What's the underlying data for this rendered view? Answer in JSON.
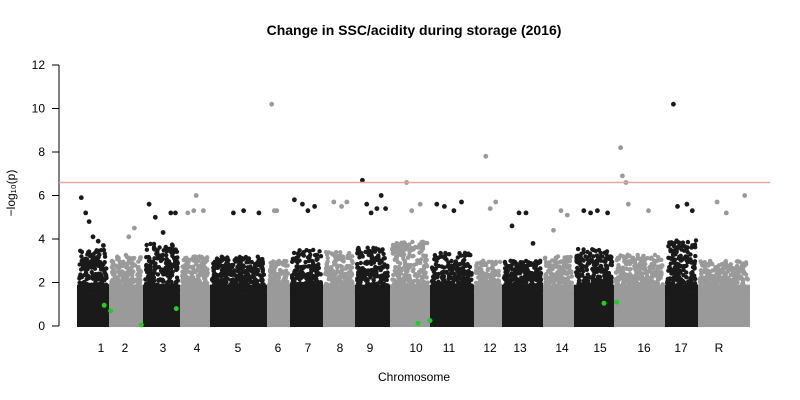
{
  "chart_data": {
    "type": "scatter",
    "subtype": "manhattan",
    "title": "Change in SSC/acidity during storage (2016)",
    "xlabel": "Chromosome",
    "ylabel": "−log₁₀(p)",
    "ylim": [
      0,
      12
    ],
    "yticks": [
      0,
      2,
      4,
      6,
      8,
      10,
      12
    ],
    "threshold": 6.6,
    "grid": false,
    "legend": "none",
    "chromosomes": [
      {
        "label": "1",
        "shade": "dark",
        "max_bulk": 3.5,
        "outliers": [
          [
            0.05,
            5.9
          ],
          [
            0.22,
            5.2
          ],
          [
            0.35,
            4.8
          ],
          [
            0.5,
            4.1
          ],
          [
            0.7,
            3.9
          ],
          [
            0.9,
            3.7
          ]
        ]
      },
      {
        "label": "2",
        "shade": "light",
        "max_bulk": 3.3,
        "outliers": [
          [
            0.6,
            4.1
          ],
          [
            0.8,
            4.5
          ]
        ]
      },
      {
        "label": "3",
        "shade": "dark",
        "max_bulk": 3.8,
        "outliers": [
          [
            0.1,
            5.6
          ],
          [
            0.3,
            5.0
          ],
          [
            0.55,
            4.3
          ],
          [
            0.8,
            5.2
          ],
          [
            0.95,
            5.2
          ]
        ]
      },
      {
        "label": "4",
        "shade": "light",
        "max_bulk": 3.2,
        "outliers": [
          [
            0.2,
            5.2
          ],
          [
            0.45,
            5.3
          ],
          [
            0.55,
            6.0
          ],
          [
            0.85,
            5.3
          ]
        ]
      },
      {
        "label": "5",
        "shade": "dark",
        "max_bulk": 3.2,
        "outliers": [
          [
            0.4,
            5.2
          ],
          [
            0.6,
            5.3
          ],
          [
            0.9,
            5.2
          ]
        ]
      },
      {
        "label": "6",
        "shade": "light",
        "max_bulk": 3.0,
        "outliers": [
          [
            0.1,
            10.2
          ],
          [
            0.25,
            5.3
          ],
          [
            0.4,
            5.3
          ]
        ]
      },
      {
        "label": "7",
        "shade": "dark",
        "max_bulk": 3.5,
        "outliers": [
          [
            0.05,
            5.8
          ],
          [
            0.35,
            5.6
          ],
          [
            0.55,
            5.3
          ],
          [
            0.8,
            5.5
          ]
        ]
      },
      {
        "label": "8",
        "shade": "light",
        "max_bulk": 3.4,
        "outliers": [
          [
            0.3,
            5.7
          ],
          [
            0.6,
            5.5
          ],
          [
            0.8,
            5.7
          ]
        ]
      },
      {
        "label": "9",
        "shade": "dark",
        "max_bulk": 3.6,
        "outliers": [
          [
            0.15,
            6.7
          ],
          [
            0.3,
            5.6
          ],
          [
            0.45,
            5.2
          ],
          [
            0.65,
            5.4
          ],
          [
            0.8,
            6.0
          ],
          [
            0.95,
            5.4
          ]
        ]
      },
      {
        "label": "10",
        "shade": "light",
        "max_bulk": 3.9,
        "outliers": [
          [
            0.4,
            6.6
          ],
          [
            0.55,
            5.3
          ],
          [
            0.8,
            5.6
          ]
        ]
      },
      {
        "label": "11",
        "shade": "dark",
        "max_bulk": 3.4,
        "outliers": [
          [
            0.1,
            5.6
          ],
          [
            0.3,
            5.5
          ],
          [
            0.55,
            5.3
          ],
          [
            0.75,
            5.7
          ]
        ]
      },
      {
        "label": "12",
        "shade": "light",
        "max_bulk": 3.0,
        "outliers": [
          [
            0.4,
            7.8
          ],
          [
            0.6,
            5.4
          ],
          [
            0.85,
            5.7
          ]
        ]
      },
      {
        "label": "13",
        "shade": "dark",
        "max_bulk": 3.0,
        "outliers": [
          [
            0.2,
            4.6
          ],
          [
            0.4,
            5.2
          ],
          [
            0.6,
            5.2
          ],
          [
            0.8,
            3.8
          ]
        ]
      },
      {
        "label": "14",
        "shade": "light",
        "max_bulk": 3.2,
        "outliers": [
          [
            0.3,
            4.4
          ],
          [
            0.6,
            5.3
          ],
          [
            0.85,
            5.1
          ]
        ]
      },
      {
        "label": "15",
        "shade": "dark",
        "max_bulk": 3.6,
        "outliers": [
          [
            0.2,
            5.3
          ],
          [
            0.4,
            5.2
          ],
          [
            0.6,
            5.3
          ],
          [
            0.9,
            5.2
          ]
        ]
      },
      {
        "label": "16",
        "shade": "light",
        "max_bulk": 3.3,
        "outliers": [
          [
            0.08,
            8.2
          ],
          [
            0.12,
            6.9
          ],
          [
            0.2,
            6.6
          ],
          [
            0.25,
            5.6
          ],
          [
            0.7,
            5.3
          ]
        ]
      },
      {
        "label": "17",
        "shade": "dark",
        "max_bulk": 4.0,
        "outliers": [
          [
            0.2,
            10.2
          ],
          [
            0.35,
            5.5
          ],
          [
            0.7,
            5.6
          ],
          [
            0.9,
            5.3
          ]
        ]
      },
      {
        "label": "R",
        "shade": "light",
        "max_bulk": 3.0,
        "outliers": [
          [
            0.35,
            5.7
          ],
          [
            0.55,
            5.2
          ],
          [
            0.95,
            6.0
          ]
        ]
      }
    ],
    "highlighted_snps": [
      {
        "chr": "1",
        "pos": 0.85,
        "value": 0.95
      },
      {
        "chr": "2",
        "pos": 0.05,
        "value": 0.7
      },
      {
        "chr": "2",
        "pos": 0.95,
        "value": 0.05
      },
      {
        "chr": "3",
        "pos": 0.9,
        "value": 0.8
      },
      {
        "chr": "10",
        "pos": 0.7,
        "value": 0.12
      },
      {
        "chr": "10",
        "pos": 1.0,
        "value": 0.25
      },
      {
        "chr": "15",
        "pos": 0.75,
        "value": 1.05
      },
      {
        "chr": "16",
        "pos": 0.05,
        "value": 1.1
      }
    ],
    "colors": {
      "dark": "#1a1a1a",
      "light": "#9a9a9a",
      "threshold": "#e8a5a0",
      "highlight": "#22cc22"
    }
  }
}
